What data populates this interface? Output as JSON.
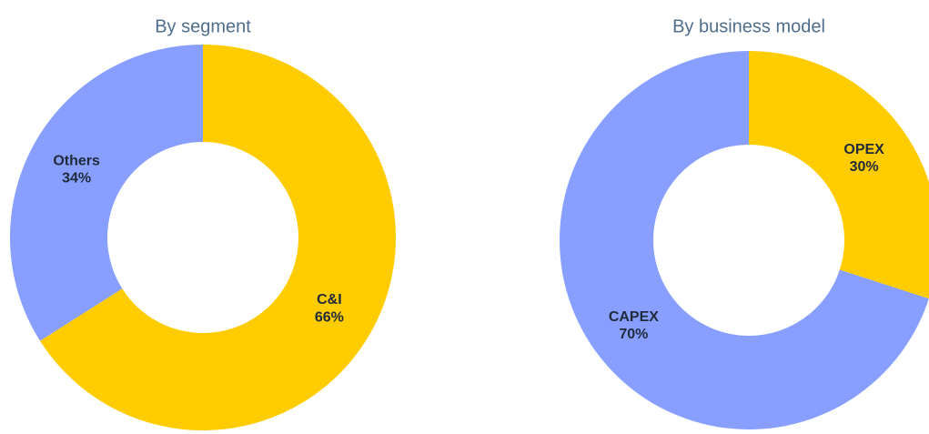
{
  "chart_data": [
    {
      "type": "pie",
      "title": "By segment",
      "categories": [
        "C&I",
        "Others"
      ],
      "values": [
        66,
        34
      ],
      "value_labels": [
        "66%",
        "34%"
      ],
      "colors": [
        "#ffcc00",
        "#889fff"
      ]
    },
    {
      "type": "pie",
      "title": "By business model",
      "categories": [
        "OPEX",
        "CAPEX"
      ],
      "values": [
        30,
        70
      ],
      "value_labels": [
        "30%",
        "70%"
      ],
      "colors": [
        "#ffcc00",
        "#889fff"
      ]
    }
  ]
}
